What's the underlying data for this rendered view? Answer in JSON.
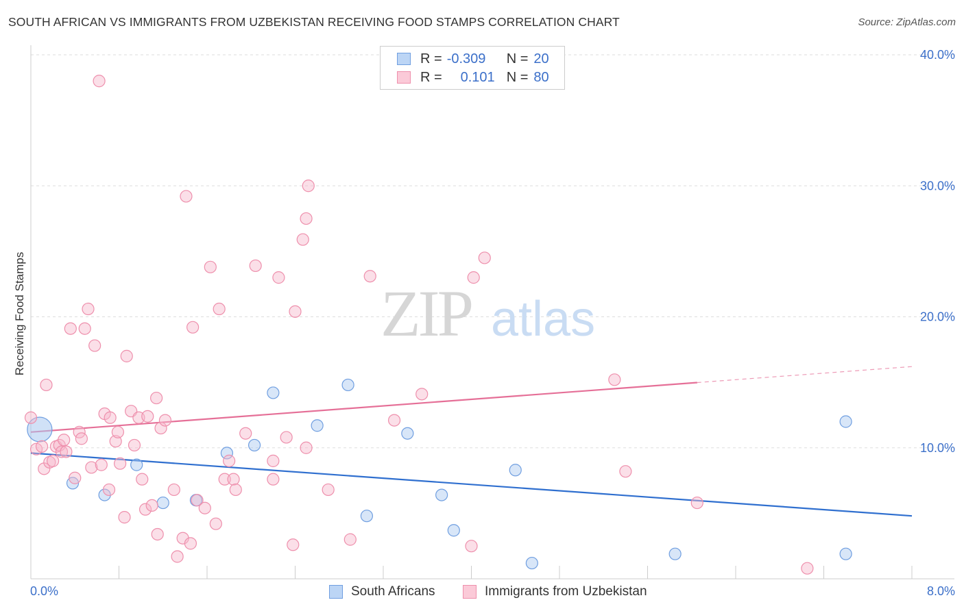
{
  "title": "SOUTH AFRICAN VS IMMIGRANTS FROM UZBEKISTAN RECEIVING FOOD STAMPS CORRELATION CHART",
  "source": "Source: ZipAtlas.com",
  "watermark": {
    "zip": "ZIP",
    "atlas": "atlas"
  },
  "legend": {
    "rows": [
      {
        "r_label": "R =",
        "r_value": "-0.309",
        "n_label": "N =",
        "n_value": "20"
      },
      {
        "r_label": "R =",
        "r_value": "0.101",
        "n_label": "N =",
        "n_value": "80"
      }
    ]
  },
  "bottom_legend": {
    "south_africans": "South Africans",
    "uzbekistan": "Immigrants from Uzbekistan"
  },
  "colors": {
    "blue_fill": "#a9c8f0",
    "blue_stroke": "#6f9ee0",
    "blue_line": "#2f6fcf",
    "pink_fill": "#f7b8cb",
    "pink_stroke": "#ee8fac",
    "pink_line": "#e56f97",
    "axis_text": "#3b6fc9",
    "grid": "#dddddd"
  },
  "chart_data": {
    "type": "scatter",
    "title": "SOUTH AFRICAN VS IMMIGRANTS FROM UZBEKISTAN RECEIVING FOOD STAMPS CORRELATION CHART",
    "xlabel": "",
    "ylabel": "Receiving Food Stamps",
    "xlim": [
      0,
      8
    ],
    "ylim": [
      0,
      40
    ],
    "x_tick_labels": [
      "0.0%",
      "8.0%"
    ],
    "y_ticks": [
      10,
      20,
      30,
      40
    ],
    "y_tick_labels": [
      "10.0%",
      "20.0%",
      "30.0%",
      "40.0%"
    ],
    "grid": true,
    "legend_position": "top-center",
    "series": [
      {
        "name": "South Africans",
        "color": "#a9c8f0",
        "trend": {
          "x": [
            0,
            8
          ],
          "y": [
            9.6,
            4.8
          ],
          "dashed_from_x": null
        },
        "points": [
          [
            0.08,
            11.4,
            "large"
          ],
          [
            0.38,
            7.3
          ],
          [
            0.67,
            6.4
          ],
          [
            0.96,
            8.7
          ],
          [
            1.2,
            5.8
          ],
          [
            1.5,
            6.0
          ],
          [
            1.78,
            9.6
          ],
          [
            2.03,
            10.2
          ],
          [
            2.2,
            14.2
          ],
          [
            2.6,
            11.7
          ],
          [
            2.88,
            14.8
          ],
          [
            3.05,
            4.8
          ],
          [
            3.42,
            11.1
          ],
          [
            3.73,
            6.4
          ],
          [
            3.84,
            3.7
          ],
          [
            4.4,
            8.3
          ],
          [
            4.55,
            1.2
          ],
          [
            5.85,
            1.9
          ],
          [
            7.4,
            12.0
          ],
          [
            7.4,
            1.9
          ]
        ]
      },
      {
        "name": "Immigrants from Uzbekistan",
        "color": "#f7b8cb",
        "trend": {
          "x": [
            0,
            8
          ],
          "y": [
            11.2,
            16.2
          ],
          "dashed_from_x": 6.05
        },
        "points": [
          [
            0.0,
            12.3
          ],
          [
            0.05,
            9.9
          ],
          [
            0.1,
            10.1
          ],
          [
            0.12,
            8.4
          ],
          [
            0.14,
            14.8
          ],
          [
            0.17,
            8.9
          ],
          [
            0.2,
            9.0
          ],
          [
            0.23,
            10.1
          ],
          [
            0.26,
            10.2
          ],
          [
            0.28,
            9.7
          ],
          [
            0.3,
            10.6
          ],
          [
            0.32,
            9.7
          ],
          [
            0.36,
            19.1
          ],
          [
            0.4,
            7.7
          ],
          [
            0.44,
            11.2
          ],
          [
            0.46,
            10.7
          ],
          [
            0.49,
            19.1
          ],
          [
            0.52,
            20.6
          ],
          [
            0.55,
            8.5
          ],
          [
            0.58,
            17.8
          ],
          [
            0.62,
            38.0
          ],
          [
            0.64,
            8.7
          ],
          [
            0.67,
            12.6
          ],
          [
            0.71,
            6.8
          ],
          [
            0.72,
            12.3
          ],
          [
            0.77,
            10.5
          ],
          [
            0.79,
            11.2
          ],
          [
            0.81,
            8.8
          ],
          [
            0.85,
            4.7
          ],
          [
            0.87,
            17.0
          ],
          [
            0.91,
            12.8
          ],
          [
            0.94,
            10.2
          ],
          [
            0.98,
            12.3
          ],
          [
            1.01,
            7.6
          ],
          [
            1.04,
            5.3
          ],
          [
            1.06,
            12.4
          ],
          [
            1.1,
            5.6
          ],
          [
            1.14,
            13.8
          ],
          [
            1.15,
            3.4
          ],
          [
            1.18,
            11.5
          ],
          [
            1.22,
            12.1
          ],
          [
            1.3,
            6.8
          ],
          [
            1.33,
            1.7
          ],
          [
            1.38,
            3.1
          ],
          [
            1.41,
            29.2
          ],
          [
            1.45,
            2.7
          ],
          [
            1.47,
            19.2
          ],
          [
            1.51,
            6.0
          ],
          [
            1.58,
            5.4
          ],
          [
            1.63,
            23.8
          ],
          [
            1.68,
            4.2
          ],
          [
            1.71,
            20.6
          ],
          [
            1.76,
            7.6
          ],
          [
            1.8,
            9.0
          ],
          [
            1.84,
            7.6
          ],
          [
            1.86,
            6.8
          ],
          [
            1.95,
            11.1
          ],
          [
            2.04,
            23.9
          ],
          [
            2.2,
            9.0
          ],
          [
            2.2,
            7.6
          ],
          [
            2.25,
            23.0
          ],
          [
            2.32,
            10.8
          ],
          [
            2.38,
            2.6
          ],
          [
            2.4,
            20.4
          ],
          [
            2.47,
            25.9
          ],
          [
            2.5,
            10.0
          ],
          [
            2.5,
            27.5
          ],
          [
            2.52,
            30.0
          ],
          [
            2.7,
            6.8
          ],
          [
            2.9,
            3.0
          ],
          [
            3.08,
            23.1
          ],
          [
            3.3,
            12.1
          ],
          [
            3.55,
            14.1
          ],
          [
            4.0,
            2.5
          ],
          [
            4.02,
            23.0
          ],
          [
            4.12,
            24.5
          ],
          [
            5.3,
            15.2
          ],
          [
            5.4,
            8.2
          ],
          [
            6.05,
            5.8
          ],
          [
            7.05,
            0.8
          ]
        ]
      }
    ]
  }
}
